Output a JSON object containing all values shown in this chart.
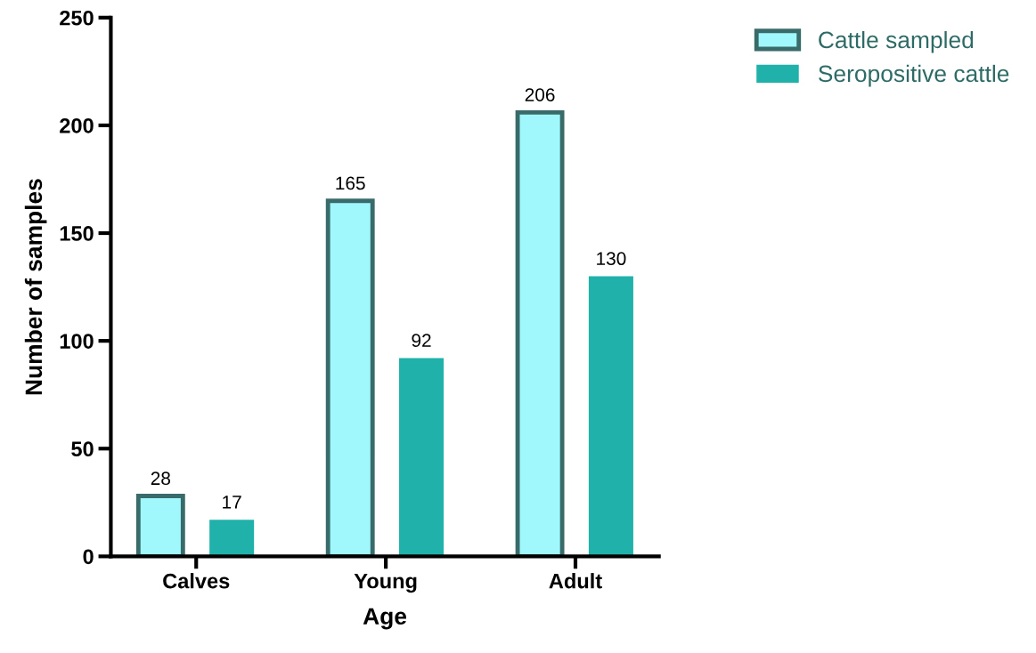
{
  "chart_data": {
    "type": "bar",
    "xlabel": "Age",
    "ylabel": "Number of samples",
    "categories": [
      "Calves",
      "Young",
      "Adult"
    ],
    "series": [
      {
        "name": "Cattle sampled",
        "color": "#a0f8fc",
        "values": [
          28,
          165,
          206
        ]
      },
      {
        "name": "Seropositive cattle",
        "color": "#20b2aa",
        "values": [
          17,
          92,
          130
        ]
      }
    ],
    "ylim": [
      0,
      250
    ],
    "yticks": [
      0,
      50,
      100,
      150,
      200,
      250
    ],
    "data_labels": true,
    "legend": "top right",
    "grid": false
  }
}
